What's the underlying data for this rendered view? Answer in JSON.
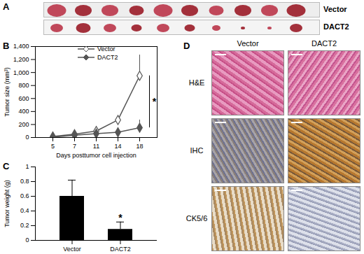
{
  "panel_labels": [
    "A",
    "B",
    "C",
    "D"
  ],
  "panel_A": {
    "rows": [
      "Vector",
      "DACT2"
    ]
  },
  "panel_D": {
    "columns": [
      "Vector",
      "DACT2"
    ],
    "rows": [
      "H&E",
      "IHC",
      "CK5/6"
    ]
  },
  "chart_data": [
    {
      "type": "line",
      "x_label": "Days posttumor cell injection",
      "y_label": "Tumor size (mm³)",
      "categories": [
        "5",
        "7",
        "11",
        "14",
        "18"
      ],
      "series": [
        {
          "name": "Vector",
          "color": "#555555",
          "marker": "open-diamond",
          "values": [
            15,
            50,
            100,
            270,
            950
          ],
          "errors": [
            3,
            10,
            70,
            60,
            320
          ]
        },
        {
          "name": "DACT2",
          "color": "#555555",
          "marker": "diamond",
          "values": [
            5,
            35,
            60,
            80,
            150
          ],
          "errors": [
            2,
            8,
            30,
            20,
            120
          ]
        }
      ],
      "ylim": [
        0,
        1400
      ],
      "yticks": [
        0,
        200,
        400,
        600,
        800,
        {
          "value": 1000,
          "label": "1,000"
        },
        {
          "value": 1200,
          "label": "1,200"
        },
        {
          "value": 1400,
          "label": "1,400"
        }
      ],
      "legend": "top",
      "annotations": [
        {
          "text": "*"
        }
      ]
    },
    {
      "type": "bar",
      "y_label": "Tumor weight (g)",
      "categories": [
        "Vector",
        "DACT2"
      ],
      "values": [
        0.6,
        0.15
      ],
      "errors": [
        0.22,
        0.1
      ],
      "color": "#000000",
      "ylim": [
        0,
        1
      ],
      "yticks": [
        0,
        0.2,
        0.4,
        0.6,
        0.8,
        1
      ],
      "annotations": [
        {
          "text": "*",
          "category": "DACT2"
        }
      ]
    }
  ]
}
